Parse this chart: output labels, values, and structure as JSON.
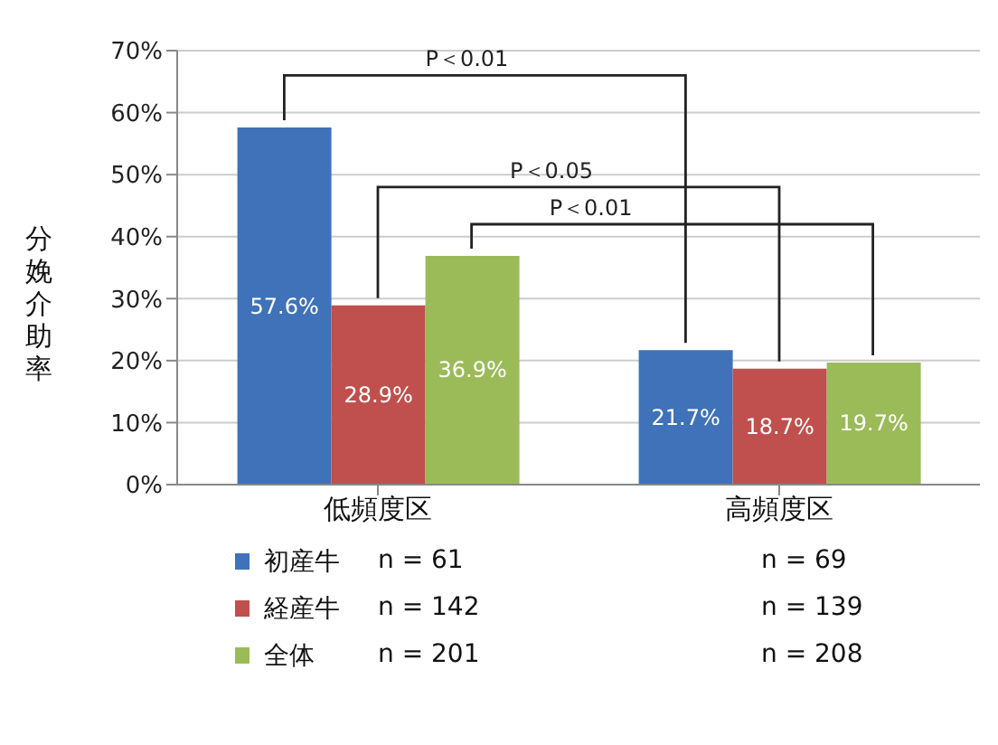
{
  "chart_data": {
    "type": "bar",
    "ylabel": "分娩介助率",
    "categories": [
      "低頻度区",
      "高頻度区"
    ],
    "series": [
      {
        "name": "初産牛",
        "color": "#3f72b8",
        "values": [
          57.6,
          21.7
        ],
        "value_labels": [
          "57.6%",
          "21.7%"
        ]
      },
      {
        "name": "経産牛",
        "color": "#c0504d",
        "values": [
          28.9,
          18.7
        ],
        "value_labels": [
          "28.9%",
          "18.7%"
        ]
      },
      {
        "name": "全体",
        "color": "#9bbb59",
        "values": [
          36.9,
          19.7
        ],
        "value_labels": [
          "36.9%",
          "19.7%"
        ]
      }
    ],
    "ylim": [
      0,
      70
    ],
    "yticks": [
      {
        "value": 0,
        "label": "0%"
      },
      {
        "value": 10,
        "label": "10%"
      },
      {
        "value": 20,
        "label": "20%"
      },
      {
        "value": 30,
        "label": "30%"
      },
      {
        "value": 40,
        "label": "40%"
      },
      {
        "value": 50,
        "label": "50%"
      },
      {
        "value": 60,
        "label": "60%"
      },
      {
        "value": 70,
        "label": "70%"
      }
    ],
    "grid": "y",
    "legend": "bottom",
    "annotations": [
      "P＜0.01",
      "P＜0.05",
      "P＜0.01",
      "n = 61",
      "n = 69",
      "n = 142",
      "n = 139",
      "n = 201",
      "n = 208"
    ]
  }
}
